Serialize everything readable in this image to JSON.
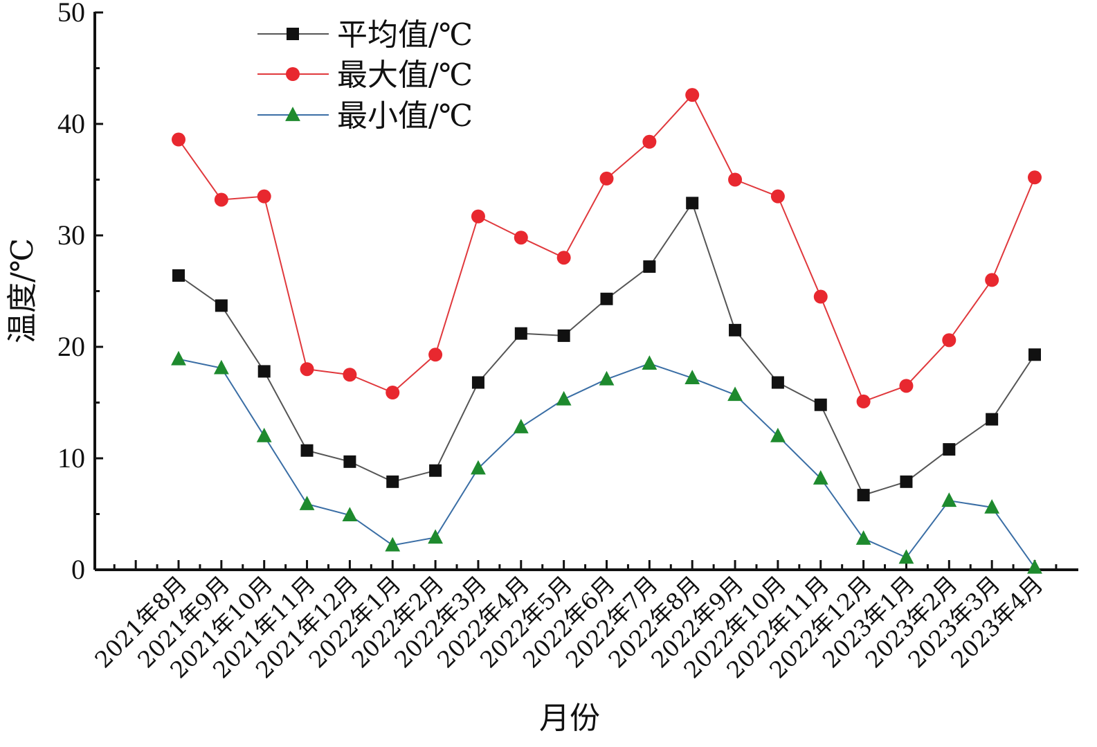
{
  "chart_data": {
    "type": "line",
    "title": "",
    "xlabel": "月份",
    "ylabel": "温度/℃",
    "ylim": [
      0,
      50
    ],
    "yticks": [
      0,
      10,
      20,
      30,
      40,
      50
    ],
    "grid": false,
    "legend_position": "top-left",
    "categories": [
      "2021年8月",
      "2021年9月",
      "2021年10月",
      "2021年11月",
      "2021年12月",
      "2022年1月",
      "2022年2月",
      "2022年3月",
      "2022年4月",
      "2022年5月",
      "2022年6月",
      "2022年7月",
      "2022年8月",
      "2022年9月",
      "2022年10月",
      "2022年11月",
      "2022年12月",
      "2023年1月",
      "2023年2月",
      "2023年3月",
      "2023年4月"
    ],
    "series": [
      {
        "name": "平均值/℃",
        "marker": "square",
        "line_color": "#555555",
        "marker_color": "#111111",
        "values": [
          26.4,
          23.7,
          17.8,
          10.7,
          9.7,
          7.9,
          8.9,
          16.8,
          21.2,
          21.0,
          24.3,
          27.2,
          32.9,
          21.5,
          16.8,
          14.8,
          6.7,
          7.9,
          10.8,
          13.5,
          19.3
        ]
      },
      {
        "name": "最大值/℃",
        "marker": "circle",
        "line_color": "#e0383c",
        "marker_color": "#e8282f",
        "values": [
          38.6,
          33.2,
          33.5,
          18.0,
          17.5,
          15.9,
          19.3,
          31.7,
          29.8,
          28.0,
          35.1,
          38.4,
          42.6,
          35.0,
          33.5,
          24.5,
          15.1,
          16.5,
          20.6,
          26.0,
          35.2
        ]
      },
      {
        "name": "最小值/℃",
        "marker": "triangle",
        "line_color": "#3a6ea5",
        "marker_color": "#1e8a2e",
        "values": [
          18.9,
          18.1,
          12.0,
          5.9,
          4.9,
          2.2,
          2.9,
          9.1,
          12.8,
          15.3,
          17.1,
          18.5,
          17.2,
          15.7,
          12.0,
          8.2,
          2.8,
          1.1,
          6.2,
          5.6,
          0.2
        ]
      }
    ]
  }
}
